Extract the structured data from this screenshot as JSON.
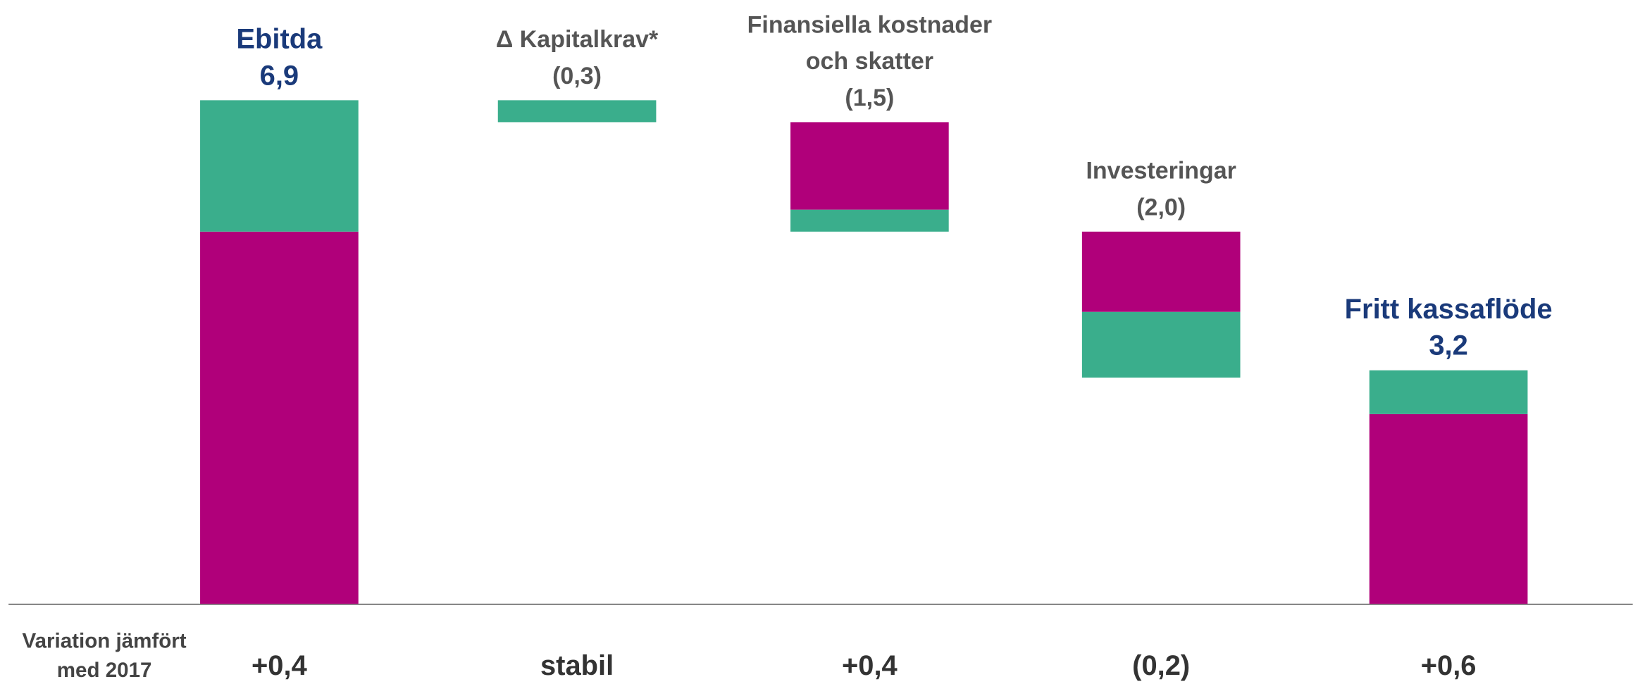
{
  "chart_data": {
    "type": "waterfall",
    "categories": [
      [
        "Ebitda"
      ],
      [
        "Δ Kapitalkrav*"
      ],
      [
        "Finansiella kostnader",
        "och skatter"
      ],
      [
        "Investeringar"
      ],
      [
        "Fritt kassaflöde"
      ]
    ],
    "kinds": [
      "total",
      "decrease",
      "decrease",
      "decrease",
      "total"
    ],
    "values": [
      6.9,
      0.3,
      1.5,
      2.0,
      3.2
    ],
    "value_labels": [
      "6,9",
      "(0,3)",
      "(1,5)",
      "(2,0)",
      "3,2"
    ],
    "series": [
      {
        "name": "magenta",
        "color": "#b0007a",
        "values": [
          5.1,
          null,
          1.2,
          1.1,
          2.6
        ]
      },
      {
        "name": "green",
        "color": "#3aae8c",
        "values": [
          1.8,
          0.3,
          0.3,
          0.9,
          0.6
        ]
      }
    ],
    "total_label_color": "#1a3a7a",
    "label_color": "#555555",
    "variation_title": [
      "Variation jämfört",
      "med 2017"
    ],
    "variation": [
      "+0,4",
      "stabil",
      "+0,4",
      "(0,2)",
      "+0,6"
    ]
  }
}
